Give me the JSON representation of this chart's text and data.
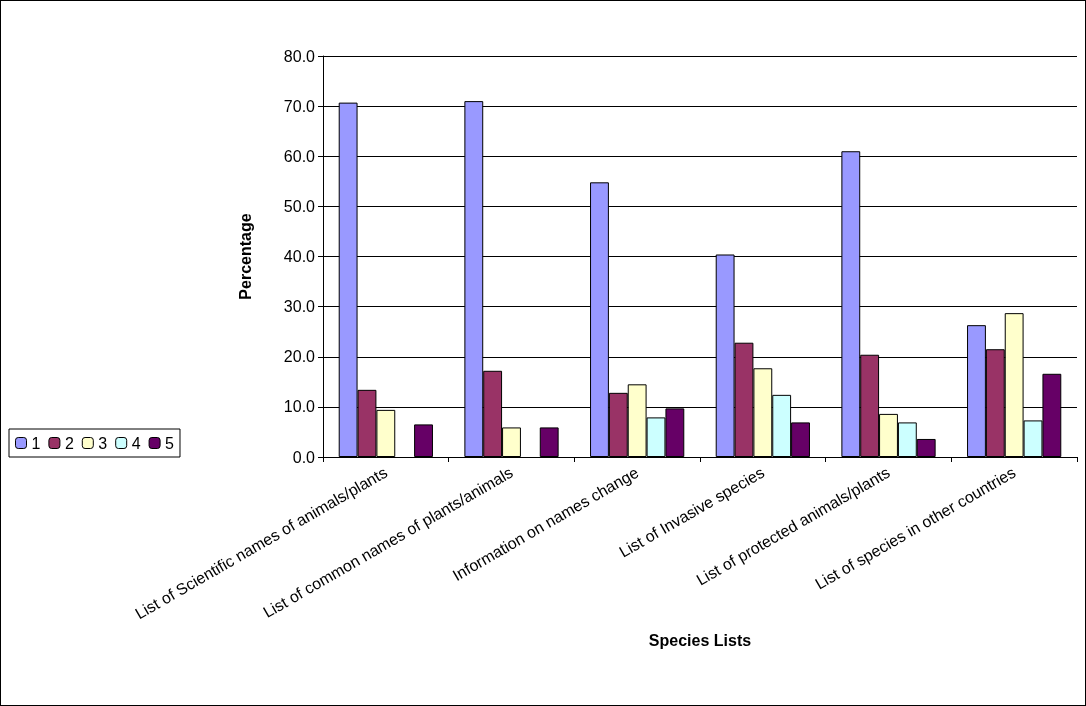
{
  "chart_data": {
    "type": "bar",
    "xlabel": "Species Lists",
    "ylabel": "Percentage",
    "categories": [
      "List of Scientific names of animals/plants",
      "List of common names of plants/animals",
      "Information on names change",
      "List of Invasive species",
      "List of protected animals/plants",
      "List of species in other countries"
    ],
    "series": [
      {
        "name": "1",
        "color": "#9999ff",
        "values": [
          70.7,
          71.0,
          54.8,
          40.4,
          61.0,
          26.3
        ]
      },
      {
        "name": "2",
        "color": "#993366",
        "values": [
          13.4,
          17.2,
          12.8,
          22.8,
          20.4,
          21.5
        ]
      },
      {
        "name": "3",
        "color": "#ffffcc",
        "values": [
          9.4,
          5.9,
          14.5,
          17.7,
          8.6,
          28.7
        ]
      },
      {
        "name": "4",
        "color": "#ccffff",
        "values": [
          null,
          null,
          7.9,
          12.4,
          6.9,
          7.3
        ]
      },
      {
        "name": "5",
        "color": "#660066",
        "values": [
          6.5,
          5.9,
          9.7,
          6.9,
          3.6,
          16.6
        ]
      }
    ],
    "ylim": [
      0,
      80
    ],
    "yticks": [
      {
        "value": 0,
        "label": "0.0"
      },
      {
        "value": 10,
        "label": "10.0"
      },
      {
        "value": 20,
        "label": "20.0"
      },
      {
        "value": 30,
        "label": "30.0"
      },
      {
        "value": 40,
        "label": "40.0"
      },
      {
        "value": 50,
        "label": "50.0"
      },
      {
        "value": 60,
        "label": "60.0"
      },
      {
        "value": 70,
        "label": "70.0"
      },
      {
        "value": 80,
        "label": "80.0"
      }
    ],
    "grid": "y",
    "legend": "left"
  }
}
